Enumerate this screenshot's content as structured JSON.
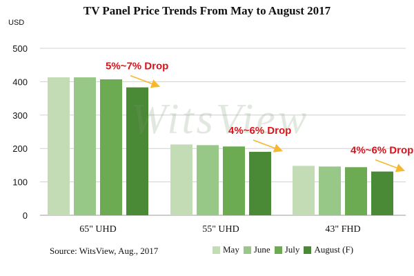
{
  "chart_data": {
    "type": "bar",
    "title": "TV Panel Price Trends From May to August 2017",
    "ylabel": "USD",
    "xlabel": "",
    "ylim": [
      0,
      500
    ],
    "yticks": [
      0,
      100,
      200,
      300,
      400,
      500
    ],
    "categories": [
      "65\" UHD",
      "55\" UHD",
      "43\" FHD"
    ],
    "series": [
      {
        "name": "May",
        "color": "#c3dcb6",
        "values": [
          413,
          212,
          148
        ]
      },
      {
        "name": "June",
        "color": "#98c888",
        "values": [
          413,
          210,
          146
        ]
      },
      {
        "name": "July",
        "color": "#6cab52",
        "values": [
          407,
          206,
          144
        ]
      },
      {
        "name": "August (F)",
        "color": "#4a8a36",
        "values": [
          383,
          190,
          131
        ]
      }
    ],
    "annotations": [
      {
        "category_index": 0,
        "text": "5%~7% Drop"
      },
      {
        "category_index": 1,
        "text": "4%~6% Drop"
      },
      {
        "category_index": 2,
        "text": "4%~6% Drop"
      }
    ],
    "annotation_color": "#e0101a",
    "arrow_color": "#f5b82e",
    "grid": true
  },
  "watermark": "WitsView",
  "source": "Source: WitsView, Aug., 2017"
}
